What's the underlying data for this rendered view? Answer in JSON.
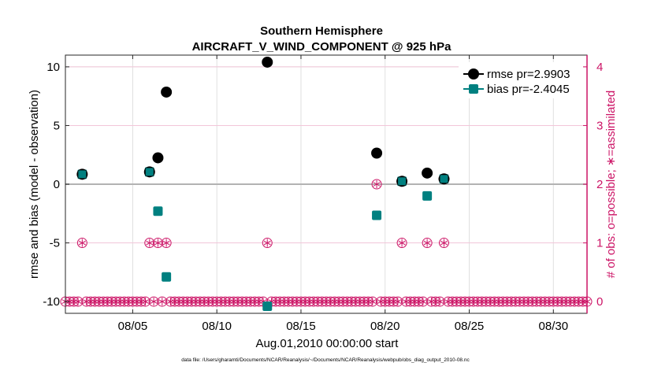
{
  "chart_data": {
    "type": "scatter",
    "title": "Southern Hemisphere",
    "subtitle": "AIRCRAFT_V_WIND_COMPONENT @ 925 hPa",
    "xlabel": "Aug.01,2010 00:00:00 start",
    "ylabel": "rmse and bias (model - observation)",
    "y2label": "# of obs: o=possible; ∗=assimilated",
    "footnote": "data file: /Users/gharamti/Documents/NCAR/Reanalysis/~/Documents/NCAR/Reanalysis/webpub/obs_diag_output_2010-08.nc",
    "xlim": [
      1,
      32
    ],
    "ylim": [
      -11,
      11
    ],
    "y2lim": [
      -0.2,
      4.2
    ],
    "xticks": [
      5,
      10,
      15,
      20,
      25,
      30
    ],
    "xticklabels": [
      "08/05",
      "08/10",
      "08/15",
      "08/20",
      "08/25",
      "08/30"
    ],
    "yticks": [
      -10,
      -5,
      0,
      5,
      10
    ],
    "yticklabels": [
      "-10",
      "-5",
      "0",
      "5",
      "10"
    ],
    "y2ticks": [
      0,
      1,
      2,
      3,
      4
    ],
    "y2ticklabels": [
      "0",
      "1",
      "2",
      "3",
      "4"
    ],
    "grid": true,
    "legend_position": "top-right",
    "colors": {
      "rmse": "#000000",
      "bias": "#008080",
      "obs": "#cc1466",
      "zero_line": "#b3b3b3",
      "grid": "#e0e0e0"
    },
    "series": [
      {
        "name": "rmse",
        "legend": "rmse pr=2.9903",
        "marker": "circle",
        "x": [
          2,
          6,
          6.5,
          7,
          13,
          19.5,
          21,
          22.5,
          23.5
        ],
        "y": [
          0.85,
          1.05,
          2.25,
          7.85,
          10.4,
          2.65,
          0.25,
          0.95,
          0.45
        ]
      },
      {
        "name": "bias",
        "legend": "bias pr=-2.4045",
        "marker": "square",
        "x": [
          2,
          6,
          6.5,
          7,
          13,
          19.5,
          21,
          22.5,
          23.5
        ],
        "y": [
          0.85,
          1.05,
          -2.3,
          -7.9,
          -10.4,
          -2.65,
          0.25,
          -1.0,
          0.45
        ]
      },
      {
        "name": "obs possible",
        "marker": "open-circle",
        "axis": "right",
        "x_start": 1,
        "x_end": 32,
        "x_step": 0.25,
        "y_default": 0,
        "nonzero": [
          {
            "x": 2,
            "y": 1
          },
          {
            "x": 6,
            "y": 1
          },
          {
            "x": 6.5,
            "y": 1
          },
          {
            "x": 7,
            "y": 1
          },
          {
            "x": 13,
            "y": 1
          },
          {
            "x": 19.5,
            "y": 2
          },
          {
            "x": 21,
            "y": 1
          },
          {
            "x": 22.5,
            "y": 1
          },
          {
            "x": 23.5,
            "y": 1
          }
        ]
      },
      {
        "name": "obs assimilated",
        "marker": "asterisk",
        "axis": "right",
        "same_as": "obs possible"
      }
    ]
  }
}
